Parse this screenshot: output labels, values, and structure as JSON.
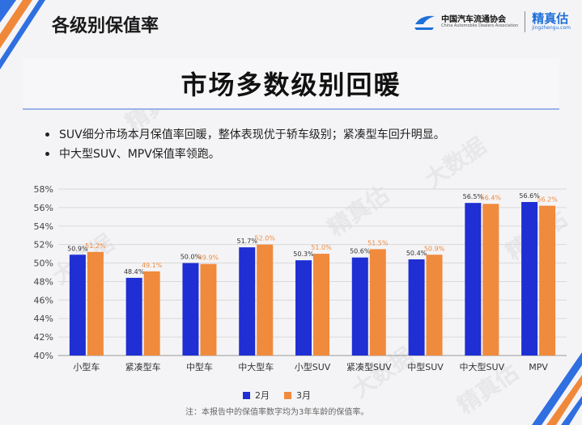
{
  "header": {
    "section_title": "各级别保值率",
    "association_name_cn": "中国汽车流通协会",
    "association_name_en": "China Automobile Dealers Association",
    "brand_name": "精真估",
    "brand_url": "jingzhengu.com"
  },
  "headline": "市场多数级别回暖",
  "bullets": [
    "SUV细分市场本月保值率回暖，整体表现优于轿车级别；紧凑型车回升明显。",
    "中大型SUV、MPV保值率领跑。"
  ],
  "watermarks": [
    "精真估",
    "大数据"
  ],
  "colors": {
    "feb": "#1f2fd3",
    "mar": "#f08a3c",
    "accent_stripe": "#2f6fe0",
    "accent_orange": "#f0883a"
  },
  "chart_data": {
    "type": "bar",
    "categories": [
      "小型车",
      "紧凑型车",
      "中型车",
      "中大型车",
      "小型SUV",
      "紧凑型SUV",
      "中型SUV",
      "中大型SUV",
      "MPV"
    ],
    "series": [
      {
        "name": "2月",
        "values": [
          50.9,
          48.4,
          50.0,
          51.7,
          50.3,
          50.6,
          50.4,
          56.5,
          56.6
        ]
      },
      {
        "name": "3月",
        "values": [
          51.2,
          49.1,
          49.9,
          52.0,
          51.0,
          51.5,
          50.9,
          56.4,
          56.2
        ]
      }
    ],
    "data_labels": [
      [
        "50.9%",
        "48.4%",
        "50.0%",
        "51.7%",
        "50.3%",
        "50.6%",
        "50.4%",
        "56.5%",
        "56.6%"
      ],
      [
        "51.2%",
        "49.1%",
        "49.9%",
        "52.0%",
        "51.0%",
        "51.5%",
        "50.9%",
        "56.4%",
        "56.2%"
      ]
    ],
    "ylim": [
      40,
      58
    ],
    "yticks": [
      "40%",
      "42%",
      "44%",
      "46%",
      "48%",
      "50%",
      "52%",
      "54%",
      "56%",
      "58%"
    ],
    "grid": true,
    "legend_position": "bottom",
    "note": "注：本报告中的保值率数字均为3年车龄的保值率。"
  }
}
